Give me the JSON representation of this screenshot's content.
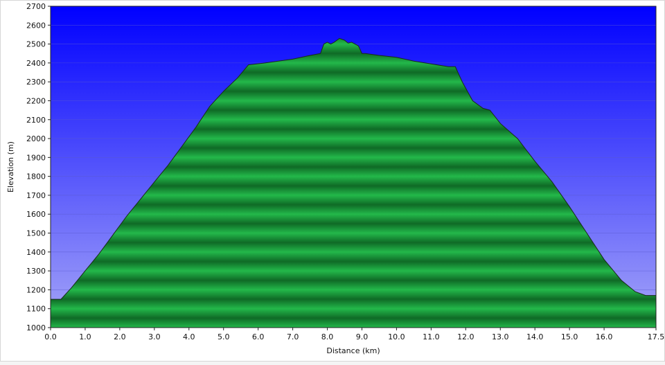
{
  "chart_data": {
    "type": "area",
    "xlabel": "Distance  (km)",
    "ylabel": "Elevation (m)",
    "xlim": [
      0,
      17.5
    ],
    "ylim": [
      1000,
      2700
    ],
    "x_ticks": [
      "0.0",
      "1.0",
      "2.0",
      "3.0",
      "4.0",
      "5.0",
      "6.0",
      "7.0",
      "8.0",
      "9.0",
      "10.0",
      "11.0",
      "12.0",
      "13.0",
      "14.0",
      "15.0",
      "16.0",
      "17.5"
    ],
    "x_tick_values": [
      0,
      1,
      2,
      3,
      4,
      5,
      6,
      7,
      8,
      9,
      10,
      11,
      12,
      13,
      14,
      15,
      16,
      17.5
    ],
    "y_ticks": [
      1000,
      1100,
      1200,
      1300,
      1400,
      1500,
      1600,
      1700,
      1800,
      1900,
      2000,
      2100,
      2200,
      2300,
      2400,
      2500,
      2600,
      2700
    ],
    "grid": true,
    "colors": {
      "sky_top": "#0000ff",
      "sky_bottom": "#a6a6f8",
      "fill_light": "#23b84a",
      "fill_dark": "#0f6a26",
      "outline": "#1a2a1a"
    },
    "series": [
      {
        "x": [
          0,
          0.3,
          0.6,
          1.0,
          1.4,
          1.8,
          2.2,
          2.6,
          3.0,
          3.4,
          3.8,
          4.2,
          4.6,
          5.0,
          5.4,
          5.72,
          6.2,
          7.0,
          7.5,
          7.8,
          7.9,
          8.0,
          8.1,
          8.2,
          8.35,
          8.5,
          8.6,
          8.7,
          8.8,
          8.9,
          9.0,
          9.1,
          9.5,
          10.0,
          10.5,
          11.0,
          11.5,
          11.7,
          11.9,
          12.2,
          12.5,
          12.7,
          13.0,
          13.5,
          14.0,
          14.5,
          15.0,
          15.5,
          16.0,
          16.5,
          16.9,
          17.2,
          17.5
        ],
        "y": [
          1150,
          1150,
          1210,
          1300,
          1390,
          1490,
          1590,
          1680,
          1770,
          1860,
          1960,
          2060,
          2170,
          2250,
          2320,
          2390,
          2400,
          2420,
          2440,
          2450,
          2500,
          2510,
          2500,
          2510,
          2530,
          2520,
          2505,
          2510,
          2500,
          2490,
          2450,
          2450,
          2440,
          2430,
          2410,
          2395,
          2380,
          2380,
          2300,
          2200,
          2160,
          2150,
          2080,
          2000,
          1880,
          1770,
          1640,
          1500,
          1360,
          1250,
          1190,
          1170,
          1170
        ]
      }
    ]
  }
}
